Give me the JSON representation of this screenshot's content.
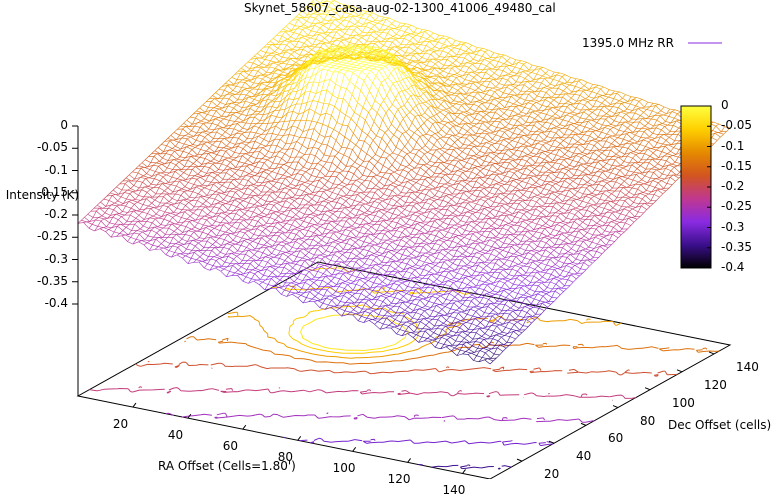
{
  "chart_data": {
    "type": "surface",
    "title": "Skynet_58607_casa-aug-02-1300_41006_49480_cal",
    "xlabel": "RA Offset (Cells=1.80')",
    "ylabel": "Dec Offset (cells)",
    "zlabel": "Intensity (K)",
    "legend": {
      "label": "1395.0 MHz RR",
      "color": "#8a2be2",
      "placement": "top-right"
    },
    "x_ticks": [
      "20",
      "40",
      "60",
      "80",
      "100",
      "120",
      "140"
    ],
    "y_ticks": [
      "20",
      "40",
      "60",
      "80",
      "100",
      "120",
      "140"
    ],
    "z_ticks": [
      "0",
      "-0.05",
      "-0.1",
      "-0.15",
      "-0.2",
      "-0.25",
      "-0.3",
      "-0.35",
      "-0.4"
    ],
    "colorbar_ticks": [
      "0",
      "-0.05",
      "-0.1",
      "-0.15",
      "-0.2",
      "-0.25",
      "-0.3",
      "-0.35",
      "-0.4"
    ],
    "xlim": [
      0,
      150
    ],
    "ylim": [
      0,
      150
    ],
    "zlim": [
      -0.4,
      0
    ],
    "surface": {
      "baseline_at_x0_y150": -0.02,
      "baseline_at_x0_y0": -0.23,
      "baseline_at_x150_y150": -0.13,
      "baseline_at_x150_y0": -0.36,
      "peak": {
        "x": 45,
        "y": 95,
        "amplitude": 0.2,
        "width": 14
      }
    },
    "colormap": [
      "#000000",
      "#3b0f8c",
      "#8a2be2",
      "#c0388f",
      "#d2551f",
      "#e68a00",
      "#ffd000",
      "#ffff40"
    ],
    "contours": true
  }
}
